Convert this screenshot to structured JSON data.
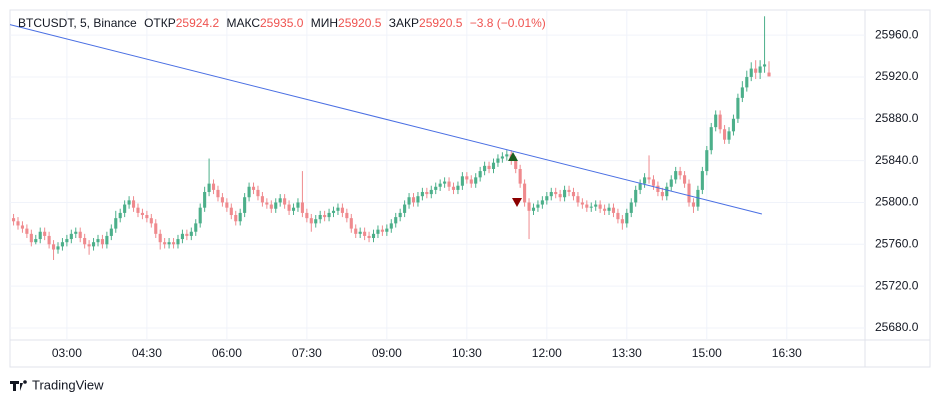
{
  "header": {
    "symbol": "BTCUSDT, 5, Binance",
    "open_label": "ОТКР",
    "open": "25924.2",
    "high_label": "МАКС",
    "high": "25935.0",
    "low_label": "МИН",
    "low": "25920.5",
    "close_label": "ЗАКР",
    "close": "25920.5",
    "change": "−3.8 (−0.01%)"
  },
  "footer": {
    "brand": "TradingView"
  },
  "chart_data": {
    "type": "candlestick",
    "up_color": "#4caf8a",
    "down_color": "#ef8a8e",
    "grid": true,
    "xlim": [
      116,
      1078
    ],
    "ylim": [
      25668.5,
      25984
    ],
    "xticks": [
      {
        "value": 180,
        "label": "03:00"
      },
      {
        "value": 270,
        "label": "04:30"
      },
      {
        "value": 360,
        "label": "06:00"
      },
      {
        "value": 450,
        "label": "07:30"
      },
      {
        "value": 540,
        "label": "09:00"
      },
      {
        "value": 630,
        "label": "10:30"
      },
      {
        "value": 720,
        "label": "12:00"
      },
      {
        "value": 810,
        "label": "13:30"
      },
      {
        "value": 900,
        "label": "15:00"
      },
      {
        "value": 990,
        "label": "16:30"
      }
    ],
    "yticks": [
      {
        "value": 25680,
        "label": "25680.0"
      },
      {
        "value": 25720,
        "label": "25720.0"
      },
      {
        "value": 25760,
        "label": "25760.0"
      },
      {
        "value": 25800,
        "label": "25800.0"
      },
      {
        "value": 25840,
        "label": "25840.0"
      },
      {
        "value": 25880,
        "label": "25880.0"
      },
      {
        "value": 25920,
        "label": "25920.0"
      },
      {
        "value": 25960,
        "label": "25960.0"
      }
    ],
    "trendline": {
      "x": [
        116,
        962
      ],
      "y": [
        25970,
        25789
      ],
      "color": "#4a6fe3"
    },
    "candles": {
      "x": [
        120,
        125,
        130,
        135,
        140,
        145,
        150,
        155,
        160,
        165,
        170,
        175,
        180,
        185,
        190,
        195,
        200,
        205,
        210,
        215,
        220,
        225,
        230,
        235,
        240,
        245,
        250,
        255,
        260,
        265,
        270,
        275,
        280,
        285,
        290,
        295,
        300,
        305,
        310,
        315,
        320,
        325,
        330,
        335,
        340,
        345,
        350,
        355,
        360,
        365,
        370,
        375,
        380,
        385,
        390,
        395,
        400,
        405,
        410,
        415,
        420,
        425,
        430,
        435,
        440,
        445,
        450,
        455,
        460,
        465,
        470,
        475,
        480,
        485,
        490,
        495,
        500,
        505,
        510,
        515,
        520,
        525,
        530,
        535,
        540,
        545,
        550,
        555,
        560,
        565,
        570,
        575,
        580,
        585,
        590,
        595,
        600,
        605,
        610,
        615,
        620,
        625,
        630,
        635,
        640,
        645,
        650,
        655,
        660,
        665,
        670,
        675,
        680,
        685,
        690,
        695,
        700,
        705,
        710,
        715,
        720,
        725,
        730,
        735,
        740,
        745,
        750,
        755,
        760,
        765,
        770,
        775,
        780,
        785,
        790,
        795,
        800,
        805,
        810,
        815,
        820,
        825,
        830,
        835,
        840,
        845,
        850,
        855,
        860,
        865,
        870,
        875,
        880,
        885,
        890,
        895,
        900,
        905,
        910,
        915,
        920,
        925,
        930,
        935,
        940,
        945,
        950,
        955,
        960,
        965,
        970
      ],
      "open": [
        25785,
        25782,
        25778,
        25775,
        25770,
        25762,
        25765,
        25772,
        25768,
        25760,
        25755,
        25758,
        25762,
        25765,
        25770,
        25772,
        25766,
        25760,
        25758,
        25762,
        25765,
        25760,
        25768,
        25775,
        25785,
        25790,
        25798,
        25802,
        25795,
        25790,
        25788,
        25785,
        25780,
        25770,
        25762,
        25760,
        25762,
        25760,
        25765,
        25770,
        25768,
        25772,
        25780,
        25795,
        25810,
        25818,
        25812,
        25805,
        25800,
        25795,
        25788,
        25782,
        25790,
        25805,
        25815,
        25812,
        25806,
        25800,
        25798,
        25794,
        25800,
        25804,
        25798,
        25792,
        25795,
        25800,
        25790,
        25785,
        25780,
        25784,
        25788,
        25786,
        25790,
        25792,
        25795,
        25790,
        25785,
        25775,
        25770,
        25772,
        25768,
        25766,
        25770,
        25774,
        25772,
        25775,
        25780,
        25786,
        25790,
        25798,
        25805,
        25800,
        25806,
        25810,
        25808,
        25812,
        25815,
        25818,
        25820,
        25815,
        25812,
        25816,
        25825,
        25822,
        25818,
        25824,
        25830,
        25835,
        25832,
        25838,
        25842,
        25844,
        25846,
        25840,
        25832,
        25818,
        25800,
        25792,
        25795,
        25798,
        25802,
        25806,
        25810,
        25808,
        25805,
        25812,
        25810,
        25806,
        25800,
        25798,
        25795,
        25796,
        25798,
        25794,
        25792,
        25795,
        25790,
        25784,
        25780,
        25790,
        25800,
        25812,
        25818,
        25824,
        25822,
        25816,
        25810,
        25806,
        25815,
        25822,
        25830,
        25826,
        25818,
        25800,
        25796,
        25812,
        25830,
        25850,
        25872,
        25884,
        25870,
        25860,
        25868,
        25880,
        25900,
        25910,
        25920,
        25928,
        25924,
        25930,
        25924.2
      ],
      "high": [
        25789,
        25786,
        25782,
        25779,
        25774,
        25769,
        25776,
        25776,
        25772,
        25764,
        25762,
        25766,
        25769,
        25774,
        25776,
        25776,
        25770,
        25764,
        25766,
        25769,
        25769,
        25772,
        25779,
        25792,
        25794,
        25802,
        25806,
        25806,
        25799,
        25794,
        25792,
        25789,
        25784,
        25774,
        25766,
        25766,
        25766,
        25769,
        25774,
        25774,
        25776,
        25784,
        25799,
        25815,
        25842,
        25822,
        25816,
        25809,
        25804,
        25799,
        25792,
        25794,
        25809,
        25819,
        25819,
        25816,
        25810,
        25804,
        25802,
        25804,
        25808,
        25808,
        25802,
        25799,
        25804,
        25830,
        25794,
        25789,
        25788,
        25792,
        25792,
        25794,
        25796,
        25799,
        25799,
        25794,
        25789,
        25779,
        25776,
        25776,
        25772,
        25774,
        25778,
        25778,
        25779,
        25784,
        25790,
        25794,
        25802,
        25809,
        25809,
        25810,
        25814,
        25814,
        25816,
        25819,
        25822,
        25824,
        25824,
        25819,
        25820,
        25829,
        25829,
        25826,
        25828,
        25834,
        25839,
        25839,
        25842,
        25846,
        25848,
        25850,
        25850,
        25844,
        25836,
        25822,
        25804,
        25799,
        25802,
        25806,
        25810,
        25814,
        25814,
        25812,
        25816,
        25816,
        25814,
        25810,
        25804,
        25802,
        25800,
        25802,
        25802,
        25798,
        25799,
        25799,
        25794,
        25788,
        25794,
        25804,
        25816,
        25822,
        25828,
        25845,
        25826,
        25820,
        25814,
        25819,
        25826,
        25834,
        25834,
        25830,
        25822,
        25804,
        25816,
        25834,
        25854,
        25876,
        25888,
        25888,
        25874,
        25872,
        25884,
        25904,
        25916,
        25926,
        25934,
        25936,
        25936,
        25978,
        25935
      ],
      "low": [
        25778,
        25774,
        25771,
        25766,
        25758,
        25760,
        25761,
        25764,
        25756,
        25745,
        25751,
        25754,
        25758,
        25761,
        25766,
        25762,
        25756,
        25750,
        25754,
        25758,
        25756,
        25756,
        25764,
        25771,
        25781,
        25786,
        25794,
        25791,
        25786,
        25784,
        25781,
        25776,
        25766,
        25755,
        25756,
        25756,
        25756,
        25756,
        25761,
        25764,
        25764,
        25768,
        25776,
        25791,
        25806,
        25808,
        25801,
        25796,
        25791,
        25784,
        25778,
        25778,
        25786,
        25801,
        25808,
        25802,
        25796,
        25794,
        25790,
        25790,
        25796,
        25794,
        25788,
        25788,
        25791,
        25786,
        25781,
        25772,
        25776,
        25780,
        25782,
        25782,
        25786,
        25788,
        25786,
        25781,
        25771,
        25766,
        25766,
        25764,
        25762,
        25762,
        25766,
        25768,
        25768,
        25771,
        25776,
        25782,
        25786,
        25794,
        25796,
        25796,
        25802,
        25804,
        25804,
        25808,
        25811,
        25814,
        25811,
        25808,
        25808,
        25812,
        25818,
        25814,
        25814,
        25820,
        25826,
        25828,
        25828,
        25834,
        25838,
        25840,
        25836,
        25828,
        25814,
        25796,
        25765,
        25788,
        25791,
        25794,
        25798,
        25802,
        25804,
        25801,
        25801,
        25806,
        25802,
        25796,
        25794,
        25791,
        25791,
        25792,
        25790,
        25788,
        25788,
        25786,
        25780,
        25774,
        25776,
        25786,
        25796,
        25808,
        25814,
        25818,
        25812,
        25806,
        25802,
        25802,
        25811,
        25818,
        25822,
        25814,
        25796,
        25790,
        25792,
        25808,
        25826,
        25846,
        25868,
        25866,
        25856,
        25856,
        25864,
        25876,
        25896,
        25906,
        25916,
        25918,
        25918,
        25924,
        25920.5
      ],
      "close": [
        25782,
        25778,
        25775,
        25770,
        25762,
        25765,
        25772,
        25768,
        25760,
        25755,
        25758,
        25762,
        25765,
        25770,
        25772,
        25766,
        25760,
        25758,
        25762,
        25765,
        25760,
        25768,
        25775,
        25785,
        25790,
        25798,
        25802,
        25795,
        25790,
        25788,
        25785,
        25780,
        25770,
        25762,
        25760,
        25762,
        25760,
        25765,
        25770,
        25768,
        25772,
        25780,
        25795,
        25810,
        25818,
        25812,
        25805,
        25800,
        25795,
        25788,
        25782,
        25790,
        25805,
        25815,
        25812,
        25806,
        25800,
        25798,
        25794,
        25800,
        25804,
        25798,
        25792,
        25795,
        25800,
        25790,
        25785,
        25780,
        25784,
        25788,
        25786,
        25790,
        25792,
        25795,
        25790,
        25785,
        25775,
        25770,
        25772,
        25768,
        25766,
        25770,
        25774,
        25772,
        25775,
        25780,
        25786,
        25790,
        25798,
        25805,
        25800,
        25806,
        25810,
        25808,
        25812,
        25815,
        25818,
        25820,
        25815,
        25812,
        25816,
        25825,
        25822,
        25818,
        25824,
        25830,
        25835,
        25832,
        25838,
        25842,
        25844,
        25846,
        25840,
        25832,
        25818,
        25800,
        25792,
        25795,
        25798,
        25802,
        25806,
        25810,
        25808,
        25805,
        25812,
        25810,
        25806,
        25800,
        25798,
        25795,
        25796,
        25798,
        25794,
        25792,
        25795,
        25790,
        25784,
        25780,
        25790,
        25800,
        25812,
        25818,
        25824,
        25822,
        25816,
        25810,
        25806,
        25815,
        25822,
        25830,
        25826,
        25818,
        25800,
        25796,
        25812,
        25830,
        25850,
        25872,
        25884,
        25870,
        25860,
        25868,
        25880,
        25900,
        25910,
        25920,
        25928,
        25924,
        25930,
        25932,
        25920.5
      ]
    }
  }
}
